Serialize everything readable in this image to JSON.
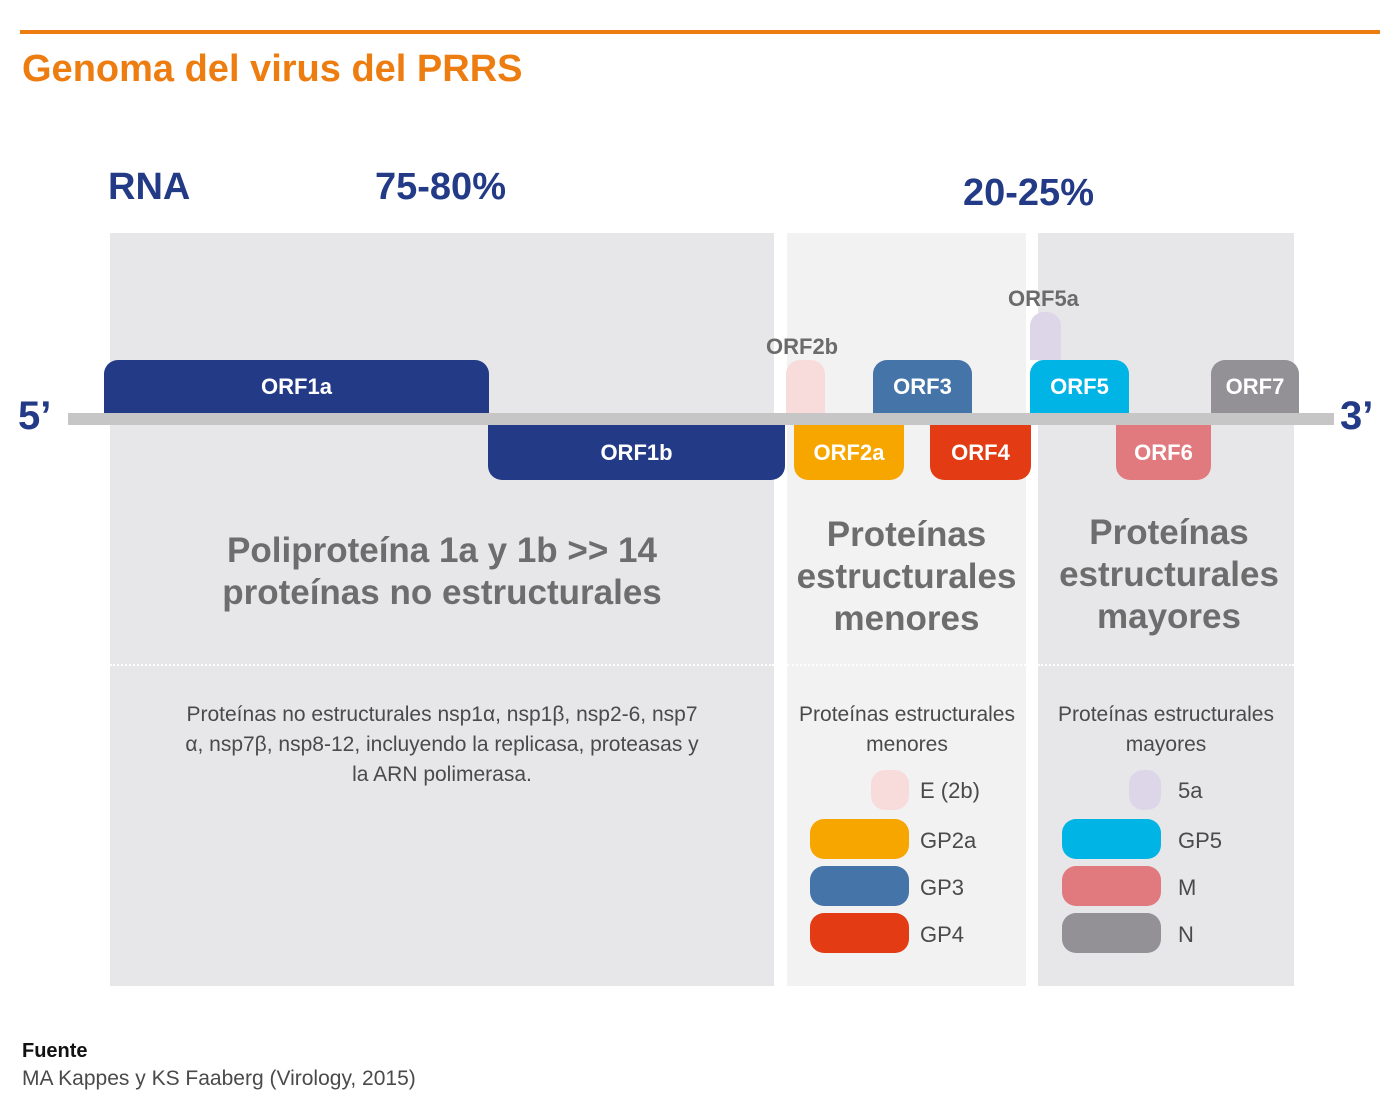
{
  "title": "Genoma del virus del PRRS",
  "rna_label": "RNA",
  "pct_left": "75-80%",
  "pct_right": "20-25%",
  "end5": "5’",
  "end3": "3’",
  "orfs": {
    "orf1a": "ORF1a",
    "orf1b": "ORF1b",
    "orf2b": "ORF2b",
    "orf2a": "ORF2a",
    "orf3": "ORF3",
    "orf4": "ORF4",
    "orf5a": "ORF5a",
    "orf5": "ORF5",
    "orf6": "ORF6",
    "orf7": "ORF7"
  },
  "sections": {
    "nonstructural": {
      "heading_line1": "Poliproteína 1a y 1b >> 14",
      "heading_line2": "proteínas no estructurales",
      "desc_line1": "Proteínas no estructurales nsp1α, nsp1β, nsp2-6, nsp7",
      "desc_line2": "α, nsp7β, nsp8-12, incluyendo la replicasa, proteasas y",
      "desc_line3": "la ARN polimerasa."
    },
    "minor": {
      "heading_line1": "Proteínas",
      "heading_line2": "estructurales",
      "heading_line3": "menores",
      "desc_line1": "Proteínas estructurales",
      "desc_line2": "menores",
      "legend": [
        {
          "label": "E (2b)",
          "color": "#f8dcdc"
        },
        {
          "label": "GP2a",
          "color": "#f7a600"
        },
        {
          "label": "GP3",
          "color": "#4474a8"
        },
        {
          "label": "GP4",
          "color": "#e33b13"
        }
      ]
    },
    "major": {
      "heading_line1": "Proteínas",
      "heading_line2": "estructurales",
      "heading_line3": "mayores",
      "desc_line1": "Proteínas estructurales",
      "desc_line2": "mayores",
      "legend": [
        {
          "label": "5a",
          "color": "#dcd6e8"
        },
        {
          "label": "GP5",
          "color": "#00b4e6"
        },
        {
          "label": "M",
          "color": "#e17a7e"
        },
        {
          "label": "N",
          "color": "#939196"
        }
      ]
    }
  },
  "source": {
    "heading": "Fuente",
    "text": "MA Kappes y KS Faaberg (Virology, 2015)"
  },
  "colors": {
    "accent": "#ee7d11",
    "navy": "#233a86",
    "orf1": "#233a86",
    "orf2b": "#f8dcdc",
    "orf2a": "#f7a600",
    "orf3": "#4474a8",
    "orf4": "#e33b13",
    "orf5a": "#dcd6e8",
    "orf5": "#00b4e6",
    "orf6": "#e17a7e",
    "orf7": "#939196"
  }
}
